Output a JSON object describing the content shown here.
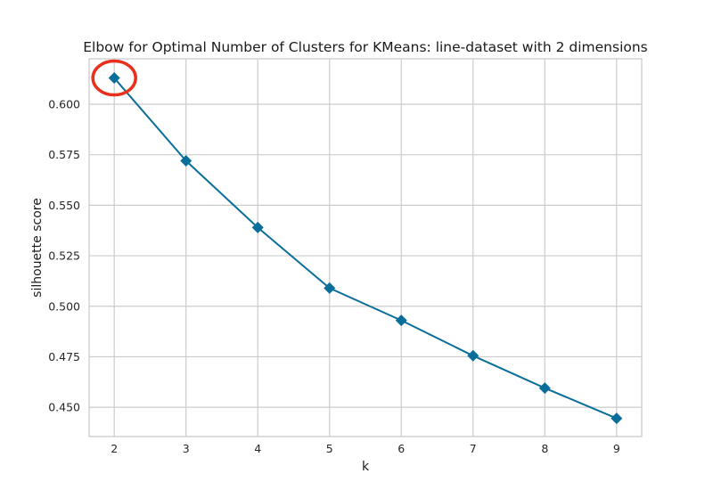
{
  "chart_data": {
    "type": "line",
    "title": "Elbow for Optimal Number of Clusters for KMeans: line-dataset with 2 dimensions",
    "xlabel": "k",
    "ylabel": "silhouette score",
    "x": [
      2,
      3,
      4,
      5,
      6,
      7,
      8,
      9
    ],
    "series": [
      {
        "values": [
          0.613,
          0.572,
          0.539,
          0.509,
          0.493,
          0.4755,
          0.4595,
          0.4445
        ]
      }
    ],
    "xlim": [
      1.65,
      9.35
    ],
    "ylim": [
      0.4355,
      0.6225
    ],
    "xticks": [
      "2",
      "3",
      "4",
      "5",
      "6",
      "7",
      "8",
      "9"
    ],
    "yticks": [
      "0.450",
      "0.475",
      "0.500",
      "0.525",
      "0.550",
      "0.575",
      "0.600"
    ],
    "grid": true,
    "marker": "diamond",
    "line_color": "#0a6e9b",
    "highlight": {
      "x": 2,
      "y": 0.613,
      "shape": "circle",
      "color": "#e8301c"
    }
  }
}
